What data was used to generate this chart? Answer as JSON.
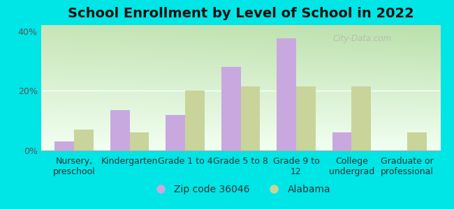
{
  "title": "School Enrollment by Level of School in 2022",
  "categories": [
    "Nursery,\npreschool",
    "Kindergarten",
    "Grade 1 to 4",
    "Grade 5 to 8",
    "Grade 9 to\n12",
    "College\nundergrad",
    "Graduate or\nprofessional"
  ],
  "zip_values": [
    3.0,
    13.5,
    12.0,
    28.0,
    37.5,
    6.0,
    0.0
  ],
  "alabama_values": [
    7.0,
    6.0,
    20.0,
    21.5,
    21.5,
    21.5,
    6.0
  ],
  "zip_color": "#c9a8e0",
  "alabama_color": "#c8d49a",
  "background_color": "#00e5e5",
  "ylim": [
    0,
    42
  ],
  "yticks": [
    0,
    20,
    40
  ],
  "ytick_labels": [
    "0%",
    "20%",
    "40%"
  ],
  "legend_zip_label": "Zip code 36046",
  "legend_alabama_label": "Alabama",
  "watermark_text": "City-Data.com",
  "bar_width": 0.35,
  "title_fontsize": 14,
  "tick_fontsize": 9,
  "legend_fontsize": 10
}
